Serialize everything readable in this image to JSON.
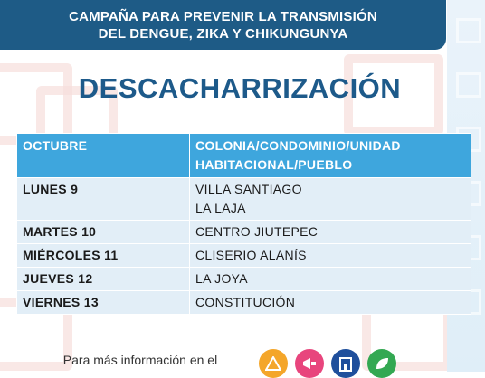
{
  "banner": {
    "line1": "CAMPAÑA PARA PREVENIR LA TRANSMISIÓN",
    "line2": "DEL DENGUE, ZIKA Y CHIKUNGUNYA"
  },
  "heading": "DESCACHARRIZACIÓN",
  "table": {
    "headers": [
      "OCTUBRE",
      "COLONIA/CONDOMINIO/UNIDAD",
      "HABITACIONAL/PUEBLO"
    ],
    "rows": [
      {
        "day": "LUNES 9",
        "places": [
          "VILLA SANTIAGO",
          "LA LAJA"
        ]
      },
      {
        "day": "MARTES 10",
        "places": [
          "CENTRO JIUTEPEC"
        ]
      },
      {
        "day": "MIÉRCOLES 11",
        "places": [
          "CLISERIO ALANÍS"
        ]
      },
      {
        "day": "JUEVES 12",
        "places": [
          "LA JOYA"
        ]
      },
      {
        "day": "VIERNES 13",
        "places": [
          "CONSTITUCIÓN"
        ]
      }
    ]
  },
  "footer": {
    "text": "Para más información en el"
  },
  "badges": [
    {
      "icon": "triangle-icon",
      "color": "#f4a62a"
    },
    {
      "icon": "megaphone-icon",
      "color": "#e8457d"
    },
    {
      "icon": "building-icon",
      "color": "#1f4f9c"
    },
    {
      "icon": "leaf-icon",
      "color": "#33a852"
    }
  ]
}
